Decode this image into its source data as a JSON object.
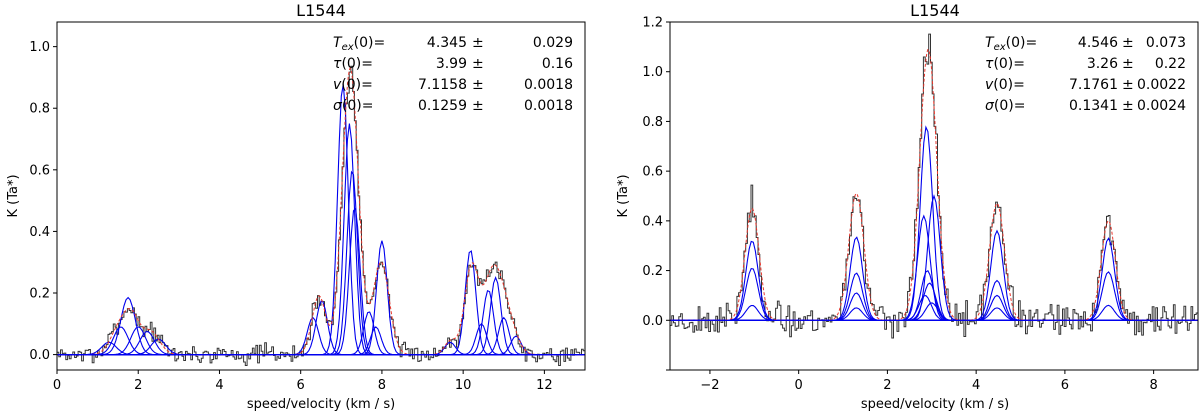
{
  "chart_data": [
    {
      "type": "line",
      "title": "L1544",
      "xlabel": "speed/velocity (km / s)",
      "ylabel": "K (Ta*)",
      "xlim": [
        0,
        13
      ],
      "ylim": [
        -0.05,
        1.08
      ],
      "xticks": [
        0,
        2,
        4,
        6,
        8,
        10,
        12
      ],
      "yticks": [
        0.0,
        0.2,
        0.4,
        0.6,
        0.8,
        1.0
      ],
      "xtick_labels": [
        "0",
        "2",
        "4",
        "6",
        "8",
        "10",
        "12"
      ],
      "ytick_labels": [
        "0.0",
        "0.2",
        "0.4",
        "0.6",
        "0.8",
        "1.0"
      ],
      "fit_params": [
        {
          "name": "T_ex(0)",
          "value": "4.345",
          "error": "0.029"
        },
        {
          "name": "τ(0)",
          "value": "3.99",
          "error": "0.16"
        },
        {
          "name": "v(0)",
          "value": "7.1158",
          "error": "0.0018"
        },
        {
          "name": "σ(0)",
          "value": "0.1259",
          "error": "0.0018"
        }
      ],
      "components": [
        {
          "center": 1.28,
          "amp": 0.04,
          "sigma": 0.18
        },
        {
          "center": 1.57,
          "amp": 0.09,
          "sigma": 0.18
        },
        {
          "center": 1.75,
          "amp": 0.185,
          "sigma": 0.18
        },
        {
          "center": 2.0,
          "amp": 0.09,
          "sigma": 0.18
        },
        {
          "center": 2.22,
          "amp": 0.075,
          "sigma": 0.18
        },
        {
          "center": 2.5,
          "amp": 0.05,
          "sigma": 0.18
        },
        {
          "center": 6.3,
          "amp": 0.12,
          "sigma": 0.14
        },
        {
          "center": 6.52,
          "amp": 0.175,
          "sigma": 0.14
        },
        {
          "center": 7.04,
          "amp": 0.88,
          "sigma": 0.13
        },
        {
          "center": 7.2,
          "amp": 0.75,
          "sigma": 0.13
        },
        {
          "center": 7.27,
          "amp": 0.6,
          "sigma": 0.13
        },
        {
          "center": 7.33,
          "amp": 0.48,
          "sigma": 0.13
        },
        {
          "center": 7.68,
          "amp": 0.14,
          "sigma": 0.13
        },
        {
          "center": 7.85,
          "amp": 0.09,
          "sigma": 0.13
        },
        {
          "center": 8.0,
          "amp": 0.37,
          "sigma": 0.13
        },
        {
          "center": 9.68,
          "amp": 0.04,
          "sigma": 0.13
        },
        {
          "center": 10.18,
          "amp": 0.34,
          "sigma": 0.13
        },
        {
          "center": 10.45,
          "amp": 0.1,
          "sigma": 0.13
        },
        {
          "center": 10.62,
          "amp": 0.21,
          "sigma": 0.13
        },
        {
          "center": 10.8,
          "amp": 0.25,
          "sigma": 0.13
        },
        {
          "center": 11.0,
          "amp": 0.12,
          "sigma": 0.13
        },
        {
          "center": 11.3,
          "amp": 0.06,
          "sigma": 0.13
        }
      ],
      "model": [
        {
          "center": 1.55,
          "amp": 0.09,
          "sigma": 0.22
        },
        {
          "center": 1.85,
          "amp": 0.1,
          "sigma": 0.18
        },
        {
          "center": 2.3,
          "amp": 0.075,
          "sigma": 0.22
        },
        {
          "center": 6.45,
          "amp": 0.19,
          "sigma": 0.17
        },
        {
          "center": 7.22,
          "amp": 0.93,
          "sigma": 0.2
        },
        {
          "center": 7.98,
          "amp": 0.3,
          "sigma": 0.2
        },
        {
          "center": 9.7,
          "amp": 0.045,
          "sigma": 0.15
        },
        {
          "center": 10.2,
          "amp": 0.27,
          "sigma": 0.17
        },
        {
          "center": 10.75,
          "amp": 0.28,
          "sigma": 0.25
        },
        {
          "center": 11.15,
          "amp": 0.07,
          "sigma": 0.2
        }
      ],
      "noise": 0.018,
      "seed": 7
    },
    {
      "type": "line",
      "title": "L1544",
      "xlabel": "speed/velocity (km / s)",
      "ylabel": "K (Ta*)",
      "xlim": [
        -2.9,
        9.0
      ],
      "ylim": [
        -0.2,
        1.2
      ],
      "xticks": [
        -2,
        0,
        2,
        4,
        6,
        8
      ],
      "yticks": [
        -0.2,
        0.0,
        0.2,
        0.4,
        0.6,
        0.8,
        1.0,
        1.2
      ],
      "xtick_labels": [
        "−2",
        "0",
        "2",
        "4",
        "6",
        "8"
      ],
      "ytick_labels": [
        "",
        "0.0",
        "0.2",
        "0.4",
        "0.6",
        "0.8",
        "1.0",
        "1.2"
      ],
      "fit_params": [
        {
          "name": "T_ex(0)",
          "value": "4.546",
          "error": "0.073"
        },
        {
          "name": "τ(0)",
          "value": "3.26",
          "error": "0.22"
        },
        {
          "name": "v(0)",
          "value": "7.1761",
          "error": "0.0022"
        },
        {
          "name": "σ(0)",
          "value": "0.1341",
          "error": "0.0024"
        }
      ],
      "components": [
        {
          "center": -1.05,
          "amp": 0.32,
          "sigma": 0.14
        },
        {
          "center": -1.05,
          "amp": 0.21,
          "sigma": 0.14
        },
        {
          "center": -1.05,
          "amp": 0.06,
          "sigma": 0.14
        },
        {
          "center": 1.3,
          "amp": 0.335,
          "sigma": 0.14
        },
        {
          "center": 1.3,
          "amp": 0.19,
          "sigma": 0.14
        },
        {
          "center": 1.3,
          "amp": 0.11,
          "sigma": 0.14
        },
        {
          "center": 1.3,
          "amp": 0.05,
          "sigma": 0.14
        },
        {
          "center": 2.88,
          "amp": 0.78,
          "sigma": 0.14
        },
        {
          "center": 2.82,
          "amp": 0.42,
          "sigma": 0.14
        },
        {
          "center": 3.05,
          "amp": 0.5,
          "sigma": 0.14
        },
        {
          "center": 2.9,
          "amp": 0.2,
          "sigma": 0.14
        },
        {
          "center": 2.95,
          "amp": 0.15,
          "sigma": 0.14
        },
        {
          "center": 2.85,
          "amp": 0.1,
          "sigma": 0.14
        },
        {
          "center": 3.0,
          "amp": 0.07,
          "sigma": 0.14
        },
        {
          "center": 4.47,
          "amp": 0.36,
          "sigma": 0.14
        },
        {
          "center": 4.47,
          "amp": 0.16,
          "sigma": 0.14
        },
        {
          "center": 4.47,
          "amp": 0.1,
          "sigma": 0.14
        },
        {
          "center": 4.47,
          "amp": 0.05,
          "sigma": 0.14
        },
        {
          "center": 6.98,
          "amp": 0.33,
          "sigma": 0.14
        },
        {
          "center": 6.98,
          "amp": 0.195,
          "sigma": 0.14
        },
        {
          "center": 6.98,
          "amp": 0.06,
          "sigma": 0.14
        }
      ],
      "model": [
        {
          "center": -1.05,
          "amp": 0.45,
          "sigma": 0.16
        },
        {
          "center": 1.3,
          "amp": 0.51,
          "sigma": 0.17
        },
        {
          "center": 2.92,
          "amp": 1.09,
          "sigma": 0.19
        },
        {
          "center": 4.47,
          "amp": 0.47,
          "sigma": 0.17
        },
        {
          "center": 6.98,
          "amp": 0.4,
          "sigma": 0.16
        }
      ],
      "noise": 0.04,
      "seed": 23
    }
  ]
}
